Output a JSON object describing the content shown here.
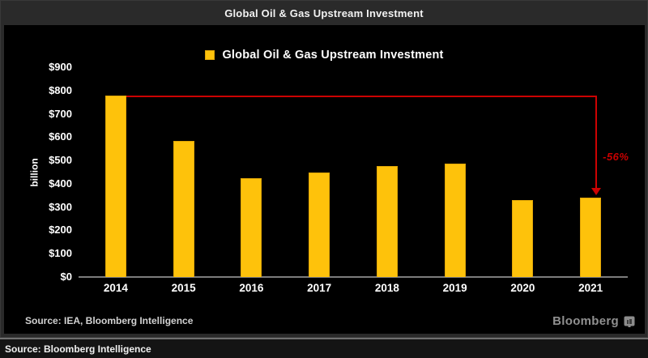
{
  "window": {
    "title": "Global Oil & Gas Upstream Investment"
  },
  "legend": {
    "label": "Global Oil & Gas Upstream Investment"
  },
  "chart_data": {
    "type": "bar",
    "title": "Global Oil & Gas Upstream Investment",
    "categories": [
      "2014",
      "2015",
      "2016",
      "2017",
      "2018",
      "2019",
      "2020",
      "2021"
    ],
    "values": [
      780,
      585,
      425,
      450,
      475,
      485,
      330,
      340
    ],
    "unit": "USD billion",
    "ylabel": "billion",
    "ylim": [
      0,
      900
    ],
    "y_ticks": [
      "$900",
      "$800",
      "$700",
      "$600",
      "$500",
      "$400",
      "$300",
      "$200",
      "$100",
      "$0"
    ],
    "grid": false,
    "legend_position": "top-center",
    "bar_color": "#fec20b",
    "annotation": {
      "label": "-56%",
      "from_category": "2014",
      "to_category": "2021",
      "color": "#cc0202"
    }
  },
  "footer": {
    "source": "Source: IEA, Bloomberg Intelligence",
    "brand": "Bloomberg"
  },
  "caption_bar": {
    "text": "Source: Bloomberg Intelligence"
  },
  "colors": {
    "frame_bg": "#2a2a2a",
    "panel_bg": "#000000",
    "bar_fill": "#fec20b",
    "annotation_red": "#cc0202",
    "axis_grey": "#7c7c7c",
    "brand_grey": "#909090"
  }
}
